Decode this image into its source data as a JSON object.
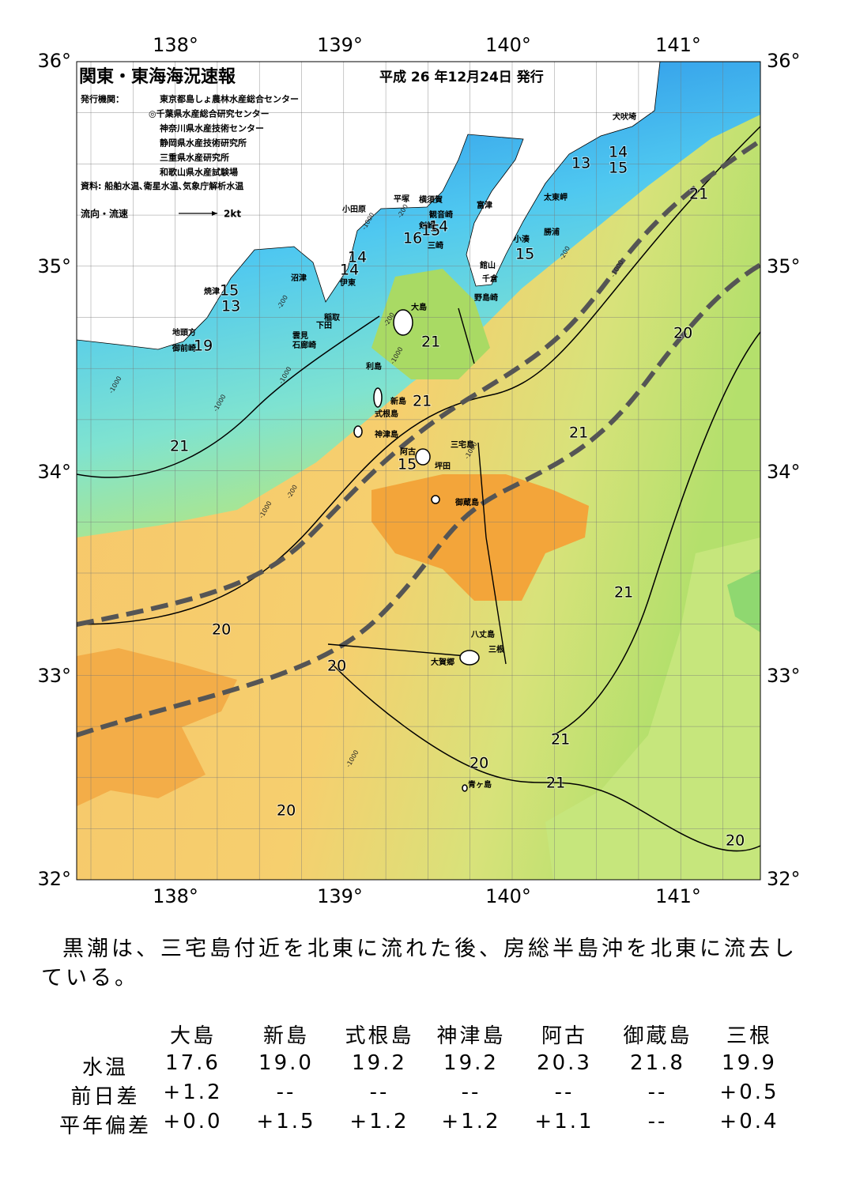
{
  "map": {
    "title": "関東・東海海況速報",
    "issue": "平成 26 年12月24日 発行",
    "publisher_label": "発行機関：",
    "publishers": [
      "東京都島しょ農林水産総合センター",
      "◎千葉県水産総合研究センター",
      "神奈川県水産技術センター",
      "静岡県水産技術研究所",
      "三重県水産研究所",
      "和歌山県水産試験場"
    ],
    "source": "資料: 船舶水温､衛星水温､気象庁解析水温",
    "legend_label": "流向・流速",
    "legend_scale": "2kt",
    "lon_labels": [
      "138°",
      "139°",
      "140°",
      "141°"
    ],
    "lat_labels": [
      "36°",
      "35°",
      "34°",
      "33°",
      "32°"
    ],
    "places": [
      "犬吠埼",
      "太東岬",
      "勝浦",
      "小湊",
      "館山",
      "千倉",
      "野島崎",
      "富津",
      "観音崎",
      "横須賀",
      "平塚",
      "小田原",
      "剣崎",
      "三崎",
      "沼津",
      "伊東",
      "稲取",
      "下田",
      "雲見",
      "石廊崎",
      "焼津",
      "地頭方",
      "御前崎",
      "大島",
      "利島",
      "新島",
      "式根島",
      "神津島",
      "三宅島",
      "阿古",
      "坪田",
      "御蔵島",
      "八丈島",
      "三根",
      "大賀郷",
      "青ヶ島"
    ],
    "contour_labels": [
      "14",
      "15",
      "13",
      "21",
      "14",
      "16",
      "15",
      "15",
      "14",
      "14",
      "15",
      "13",
      "19",
      "21",
      "20",
      "21",
      "21",
      "15",
      "21",
      "20",
      "21",
      "20",
      "21",
      "20",
      "21",
      "20"
    ],
    "depth_labels": [
      "-200",
      "-1000",
      "-200",
      "-1000",
      "-200",
      "-1000",
      "-200",
      "-1000",
      "-1000",
      "-1000",
      "-1000",
      "-200",
      "-1000",
      "-1000"
    ]
  },
  "summary": "黒潮は、三宅島付近を北東に流れた後、房総半島沖を北東に流去している。",
  "table": {
    "columns": [
      "大島",
      "新島",
      "式根島",
      "神津島",
      "阿古",
      "御蔵島",
      "三根"
    ],
    "rows": [
      {
        "label": "水温",
        "values": [
          "17.6",
          "19.0",
          "19.2",
          "19.2",
          "20.3",
          "21.8",
          "19.9"
        ]
      },
      {
        "label": "前日差",
        "values": [
          "+1.2",
          "--",
          "--",
          "--",
          "--",
          "--",
          "+0.5"
        ]
      },
      {
        "label": "平年偏差",
        "values": [
          "+0.0",
          "+1.5",
          "+1.2",
          "+1.2",
          "+1.1",
          "--",
          "+0.4"
        ]
      }
    ]
  }
}
